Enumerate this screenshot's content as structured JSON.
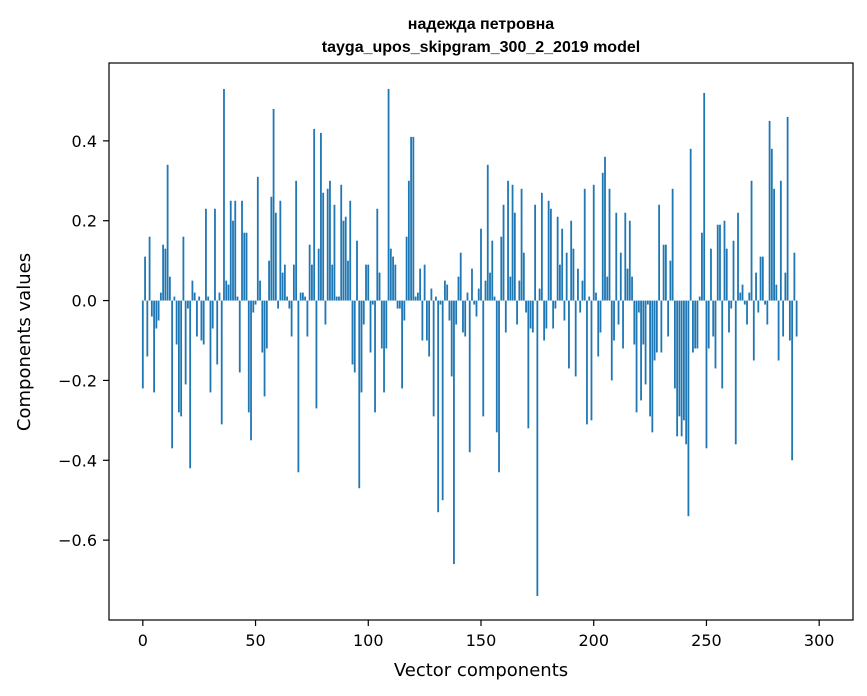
{
  "chart_data": {
    "type": "bar",
    "title_line1": "надежда петровна",
    "title_line2": "tayga_upos_skipgram_300_2_2019 model",
    "xlabel": "Vector components",
    "ylabel": "Components values",
    "xlim": [
      -15,
      315
    ],
    "ylim": [
      -0.8,
      0.595
    ],
    "xticks": [
      0,
      50,
      100,
      150,
      200,
      250,
      300
    ],
    "xtick_labels": [
      "0",
      "50",
      "100",
      "150",
      "200",
      "250",
      "300"
    ],
    "yticks": [
      -0.6,
      -0.4,
      -0.2,
      0.0,
      0.2,
      0.4
    ],
    "ytick_labels": [
      "−0.6",
      "−0.4",
      "−0.2",
      "0.0",
      "0.2",
      "0.4"
    ],
    "bar_color": "#1f77b4",
    "grid": false,
    "values": [
      -0.22,
      0.11,
      -0.14,
      0.16,
      -0.04,
      -0.23,
      -0.07,
      -0.05,
      0.02,
      0.14,
      0.13,
      0.34,
      0.06,
      -0.37,
      0.01,
      -0.11,
      -0.28,
      -0.29,
      0.16,
      -0.21,
      -0.02,
      -0.42,
      0.05,
      0.02,
      -0.09,
      0.01,
      -0.1,
      -0.11,
      0.23,
      0.01,
      -0.23,
      -0.07,
      0.23,
      -0.16,
      0.02,
      -0.31,
      0.53,
      0.05,
      0.04,
      0.25,
      0.2,
      0.25,
      0.01,
      -0.18,
      0.25,
      0.17,
      0.17,
      -0.28,
      -0.35,
      -0.03,
      -0.01,
      0.31,
      0.05,
      -0.13,
      -0.24,
      -0.12,
      0.1,
      0.26,
      0.48,
      0.22,
      -0.02,
      0.25,
      0.07,
      0.09,
      0.01,
      -0.02,
      -0.09,
      0.09,
      0.3,
      -0.43,
      0.02,
      0.02,
      0.01,
      -0.09,
      0.14,
      0.09,
      0.43,
      -0.27,
      0.13,
      0.42,
      0.27,
      -0.06,
      0.28,
      0.3,
      0.09,
      0.24,
      0.01,
      0.01,
      0.29,
      0.2,
      0.21,
      0.1,
      0.25,
      -0.16,
      -0.18,
      0.15,
      -0.47,
      -0.23,
      -0.06,
      0.09,
      0.09,
      -0.13,
      -0.01,
      -0.28,
      0.23,
      0.07,
      -0.12,
      -0.23,
      -0.12,
      0.53,
      0.13,
      0.11,
      0.09,
      -0.02,
      -0.02,
      -0.22,
      -0.05,
      0.16,
      0.3,
      0.41,
      0.41,
      0.01,
      0.02,
      0.08,
      -0.1,
      0.09,
      -0.1,
      -0.14,
      0.03,
      -0.29,
      0.01,
      -0.53,
      -0.01,
      -0.5,
      0.05,
      0.04,
      -0.05,
      -0.19,
      -0.66,
      -0.06,
      0.06,
      0.12,
      -0.08,
      -0.09,
      0.02,
      -0.38,
      0.08,
      -0.01,
      -0.04,
      0.03,
      0.18,
      -0.29,
      0.05,
      0.34,
      0.07,
      0.15,
      0.01,
      -0.33,
      -0.43,
      0.16,
      0.24,
      -0.08,
      0.3,
      0.06,
      0.29,
      0.22,
      -0.06,
      0.05,
      0.28,
      0.12,
      -0.03,
      -0.32,
      -0.07,
      -0.08,
      0.24,
      -0.74,
      0.03,
      0.27,
      -0.1,
      -0.07,
      0.25,
      0.23,
      -0.07,
      -0.02,
      0.21,
      0.09,
      0.18,
      -0.05,
      0.12,
      -0.17,
      0.2,
      0.13,
      -0.19,
      0.08,
      -0.03,
      0.05,
      0.28,
      -0.31,
      0.01,
      -0.3,
      0.29,
      0.02,
      -0.14,
      -0.08,
      0.32,
      0.36,
      0.06,
      0.28,
      -0.2,
      -0.1,
      0.22,
      -0.06,
      0.12,
      -0.12,
      0.22,
      0.08,
      0.2,
      0.06,
      -0.11,
      -0.28,
      -0.03,
      -0.25,
      -0.11,
      -0.21,
      -0.01,
      -0.29,
      -0.33,
      -0.15,
      -0.13,
      0.24,
      -0.13,
      0.14,
      0.14,
      -0.09,
      0.1,
      0.28,
      -0.22,
      -0.34,
      -0.29,
      -0.34,
      -0.3,
      -0.36,
      -0.54,
      0.38,
      -0.13,
      -0.12,
      -0.12,
      0.01,
      0.17,
      0.52,
      -0.37,
      -0.12,
      0.13,
      -0.09,
      -0.17,
      0.19,
      0.19,
      -0.22,
      0.2,
      0.13,
      -0.08,
      -0.02,
      0.15,
      -0.36,
      0.22,
      0.02,
      0.04,
      -0.01,
      -0.06,
      0.02,
      0.3,
      -0.15,
      0.07,
      -0.03,
      0.11,
      0.11,
      -0.01,
      -0.06,
      0.45,
      0.38,
      0.28,
      0.04,
      -0.15,
      0.3,
      -0.09,
      0.07,
      0.46,
      -0.1,
      -0.4,
      0.12,
      -0.09
    ]
  }
}
